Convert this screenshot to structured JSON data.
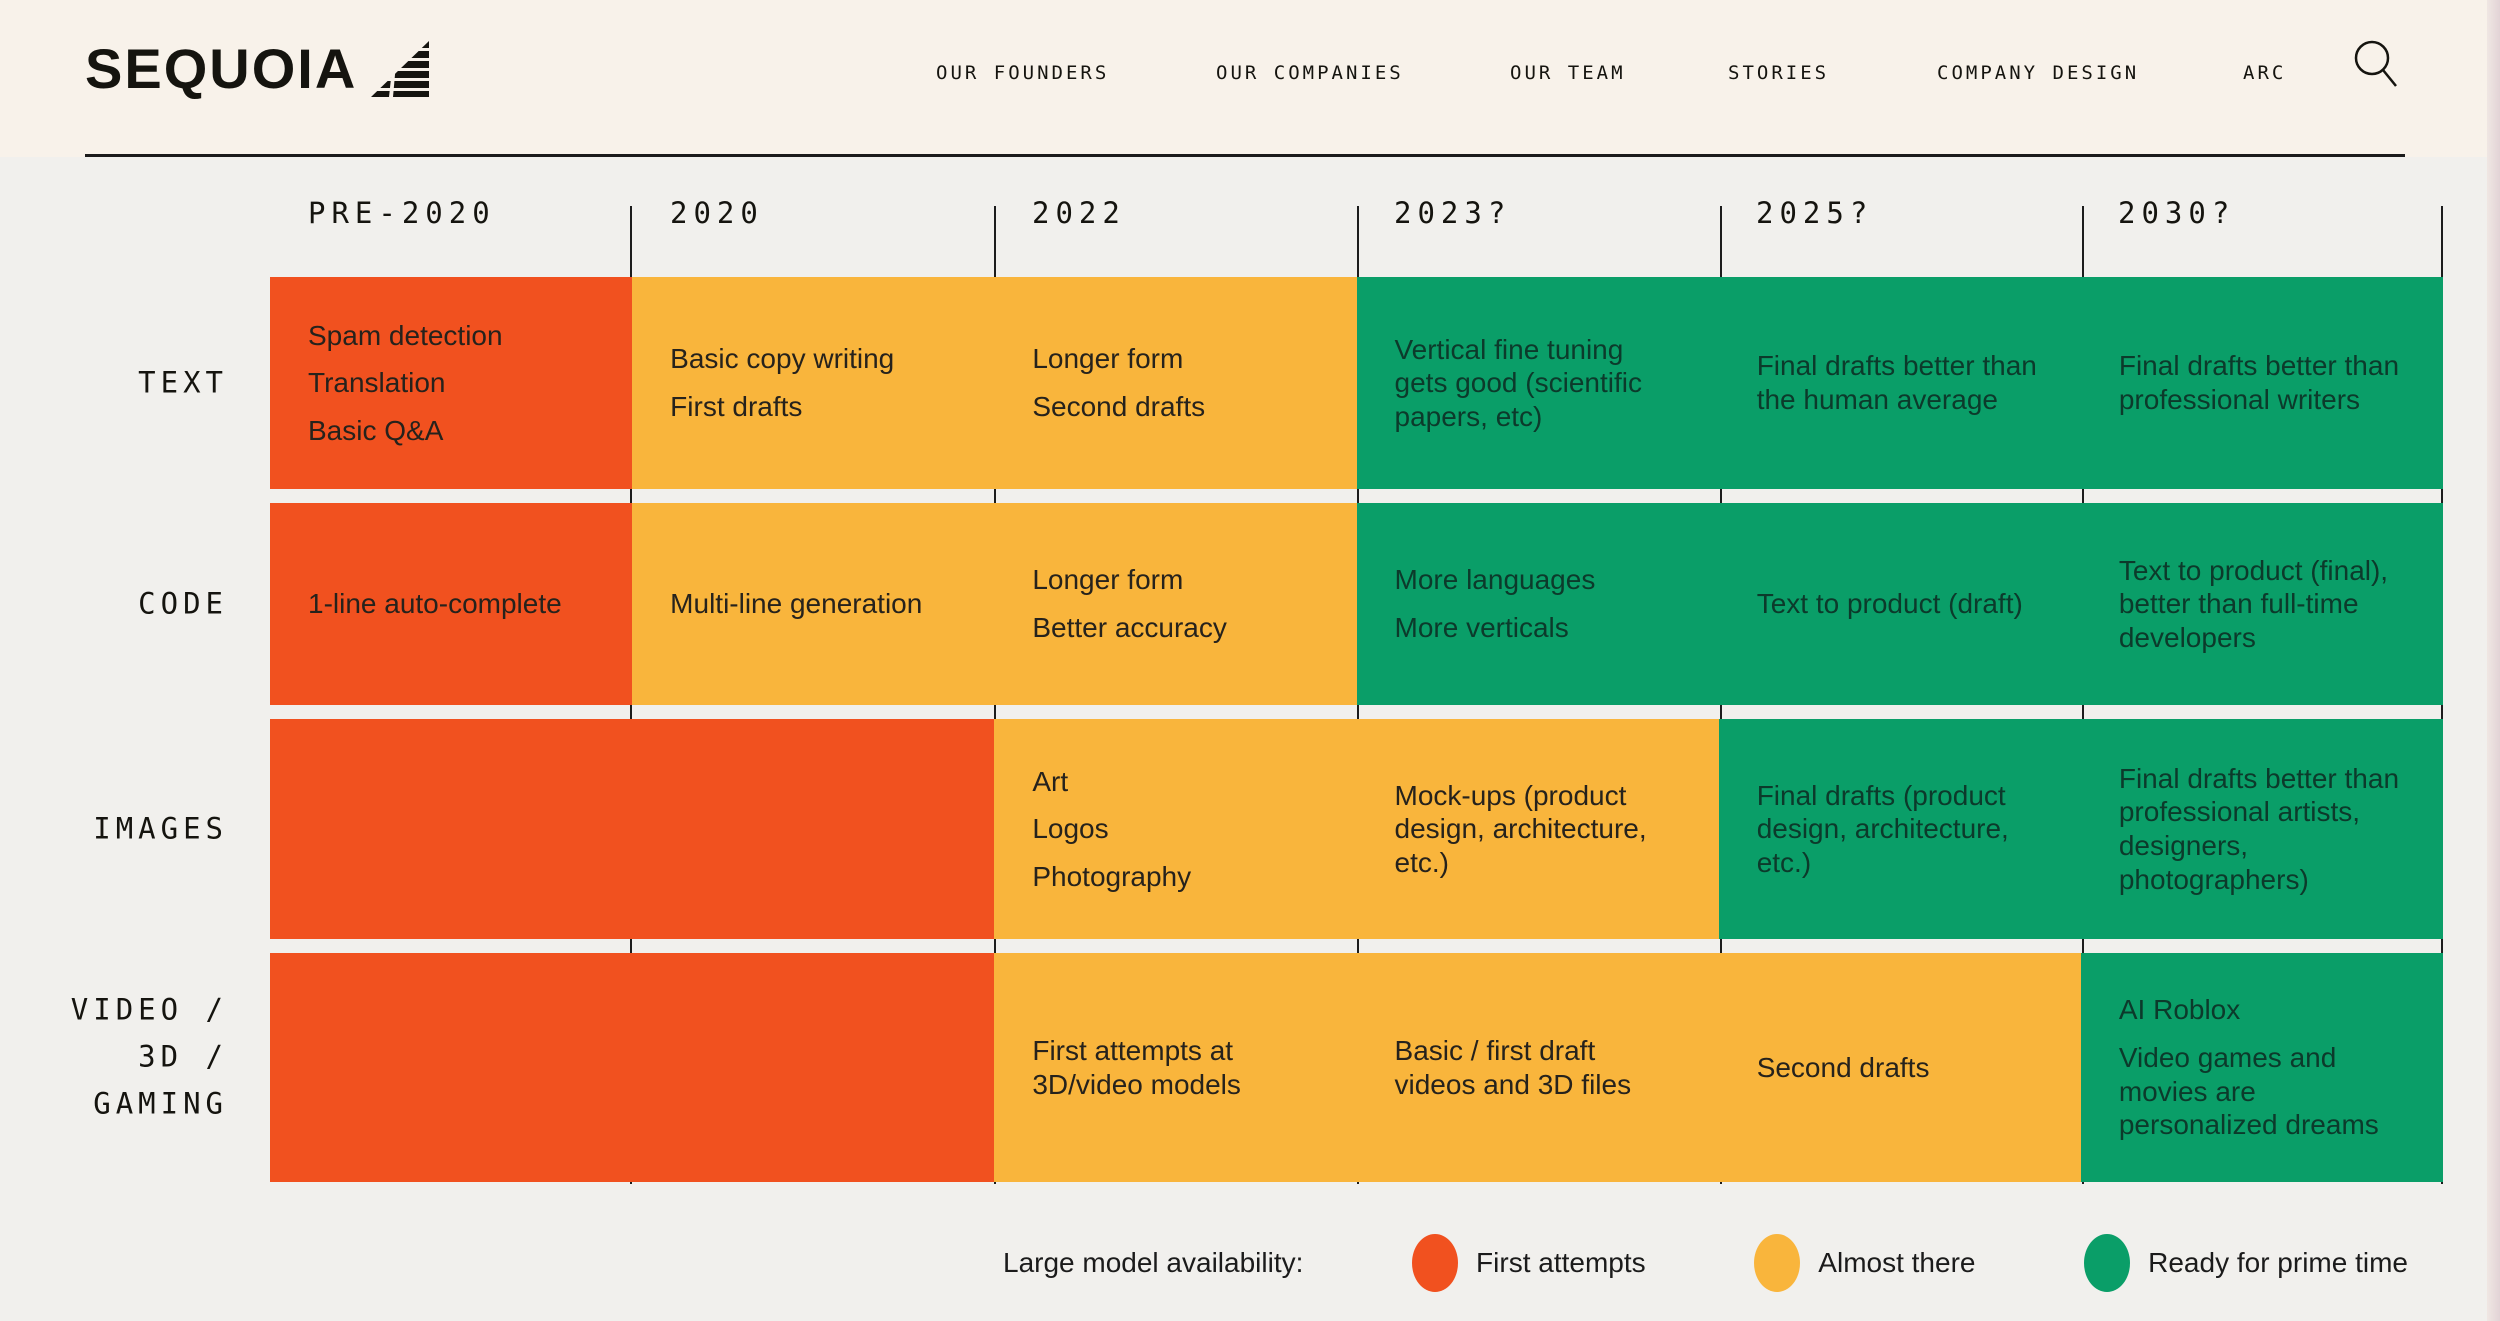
{
  "brand": {
    "logo_text": "SEQUOIA",
    "logo_mark_icon": "sequoia-leaf-icon"
  },
  "nav": {
    "items": [
      {
        "label": "OUR FOUNDERS"
      },
      {
        "label": "OUR COMPANIES"
      },
      {
        "label": "OUR TEAM"
      },
      {
        "label": "STORIES"
      },
      {
        "label": "COMPANY DESIGN"
      },
      {
        "label": "ARC"
      }
    ],
    "search_icon": "search-icon"
  },
  "colors": {
    "header_bg": "#F8F2EA",
    "page_bg": "#F1F0ED",
    "rule": "#1B1B1B",
    "grid_line": "#1C1C1C"
  },
  "table": {
    "column_headers": [
      "PRE-2020",
      "2020",
      "2022",
      "2023?",
      "2025?",
      "2030?"
    ],
    "status_colors": {
      "first-attempts": {
        "bg": "#F1511F",
        "text": "#26221C"
      },
      "almost-there": {
        "bg": "#F9B53C",
        "text": "#26221C"
      },
      "ready": {
        "bg": "#0A9E68",
        "text": "#0C3A2B"
      }
    },
    "rows": [
      {
        "label_lines": [
          "TEXT"
        ],
        "cells": [
          {
            "status": "first-attempts",
            "items": [
              "Spam detection",
              "Translation",
              "Basic Q&A"
            ]
          },
          {
            "status": "almost-there",
            "items": [
              "Basic copy writing",
              "First drafts"
            ]
          },
          {
            "status": "almost-there",
            "items": [
              "Longer form",
              "Second drafts"
            ]
          },
          {
            "status": "ready",
            "items": [
              "Vertical fine tuning gets good (scientific papers, etc)"
            ]
          },
          {
            "status": "ready",
            "items": [
              "Final drafts better than the human average"
            ]
          },
          {
            "status": "ready",
            "items": [
              "Final drafts better than professional writers"
            ]
          }
        ]
      },
      {
        "label_lines": [
          "CODE"
        ],
        "cells": [
          {
            "status": "first-attempts",
            "items": [
              "1-line auto-complete"
            ]
          },
          {
            "status": "almost-there",
            "items": [
              "Multi-line generation"
            ]
          },
          {
            "status": "almost-there",
            "items": [
              "Longer form",
              "Better accuracy"
            ]
          },
          {
            "status": "ready",
            "items": [
              "More languages",
              "More verticals"
            ]
          },
          {
            "status": "ready",
            "items": [
              "Text to product (draft)"
            ]
          },
          {
            "status": "ready",
            "items": [
              "Text to product (final), better than full-time developers"
            ]
          }
        ]
      },
      {
        "label_lines": [
          "IMAGES"
        ],
        "cells": [
          {
            "status": "first-attempts",
            "items": []
          },
          {
            "status": "first-attempts",
            "items": []
          },
          {
            "status": "almost-there",
            "items": [
              "Art",
              "Logos",
              "Photography"
            ]
          },
          {
            "status": "almost-there",
            "items": [
              "Mock-ups (product design, architecture, etc.)"
            ]
          },
          {
            "status": "ready",
            "items": [
              "Final drafts (product design, architecture, etc.)"
            ]
          },
          {
            "status": "ready",
            "items": [
              "Final drafts better than professional artists, designers, photographers)"
            ]
          }
        ]
      },
      {
        "label_lines": [
          "VIDEO /",
          "3D /",
          "GAMING"
        ],
        "cells": [
          {
            "status": "first-attempts",
            "items": []
          },
          {
            "status": "first-attempts",
            "items": []
          },
          {
            "status": "almost-there",
            "items": [
              "First attempts at 3D/video models"
            ]
          },
          {
            "status": "almost-there",
            "items": [
              "Basic / first draft videos and 3D files"
            ]
          },
          {
            "status": "almost-there",
            "items": [
              "Second drafts"
            ]
          },
          {
            "status": "ready",
            "items": [
              "AI Roblox",
              "Video games and movies are personalized dreams"
            ]
          }
        ]
      }
    ]
  },
  "legend": {
    "title": "Large model availability:",
    "items": [
      {
        "label": "First attempts",
        "status": "first-attempts",
        "color": "#F1511F"
      },
      {
        "label": "Almost there",
        "status": "almost-there",
        "color": "#F9B53C"
      },
      {
        "label": "Ready for prime time",
        "status": "ready",
        "color": "#0A9E68"
      }
    ]
  }
}
